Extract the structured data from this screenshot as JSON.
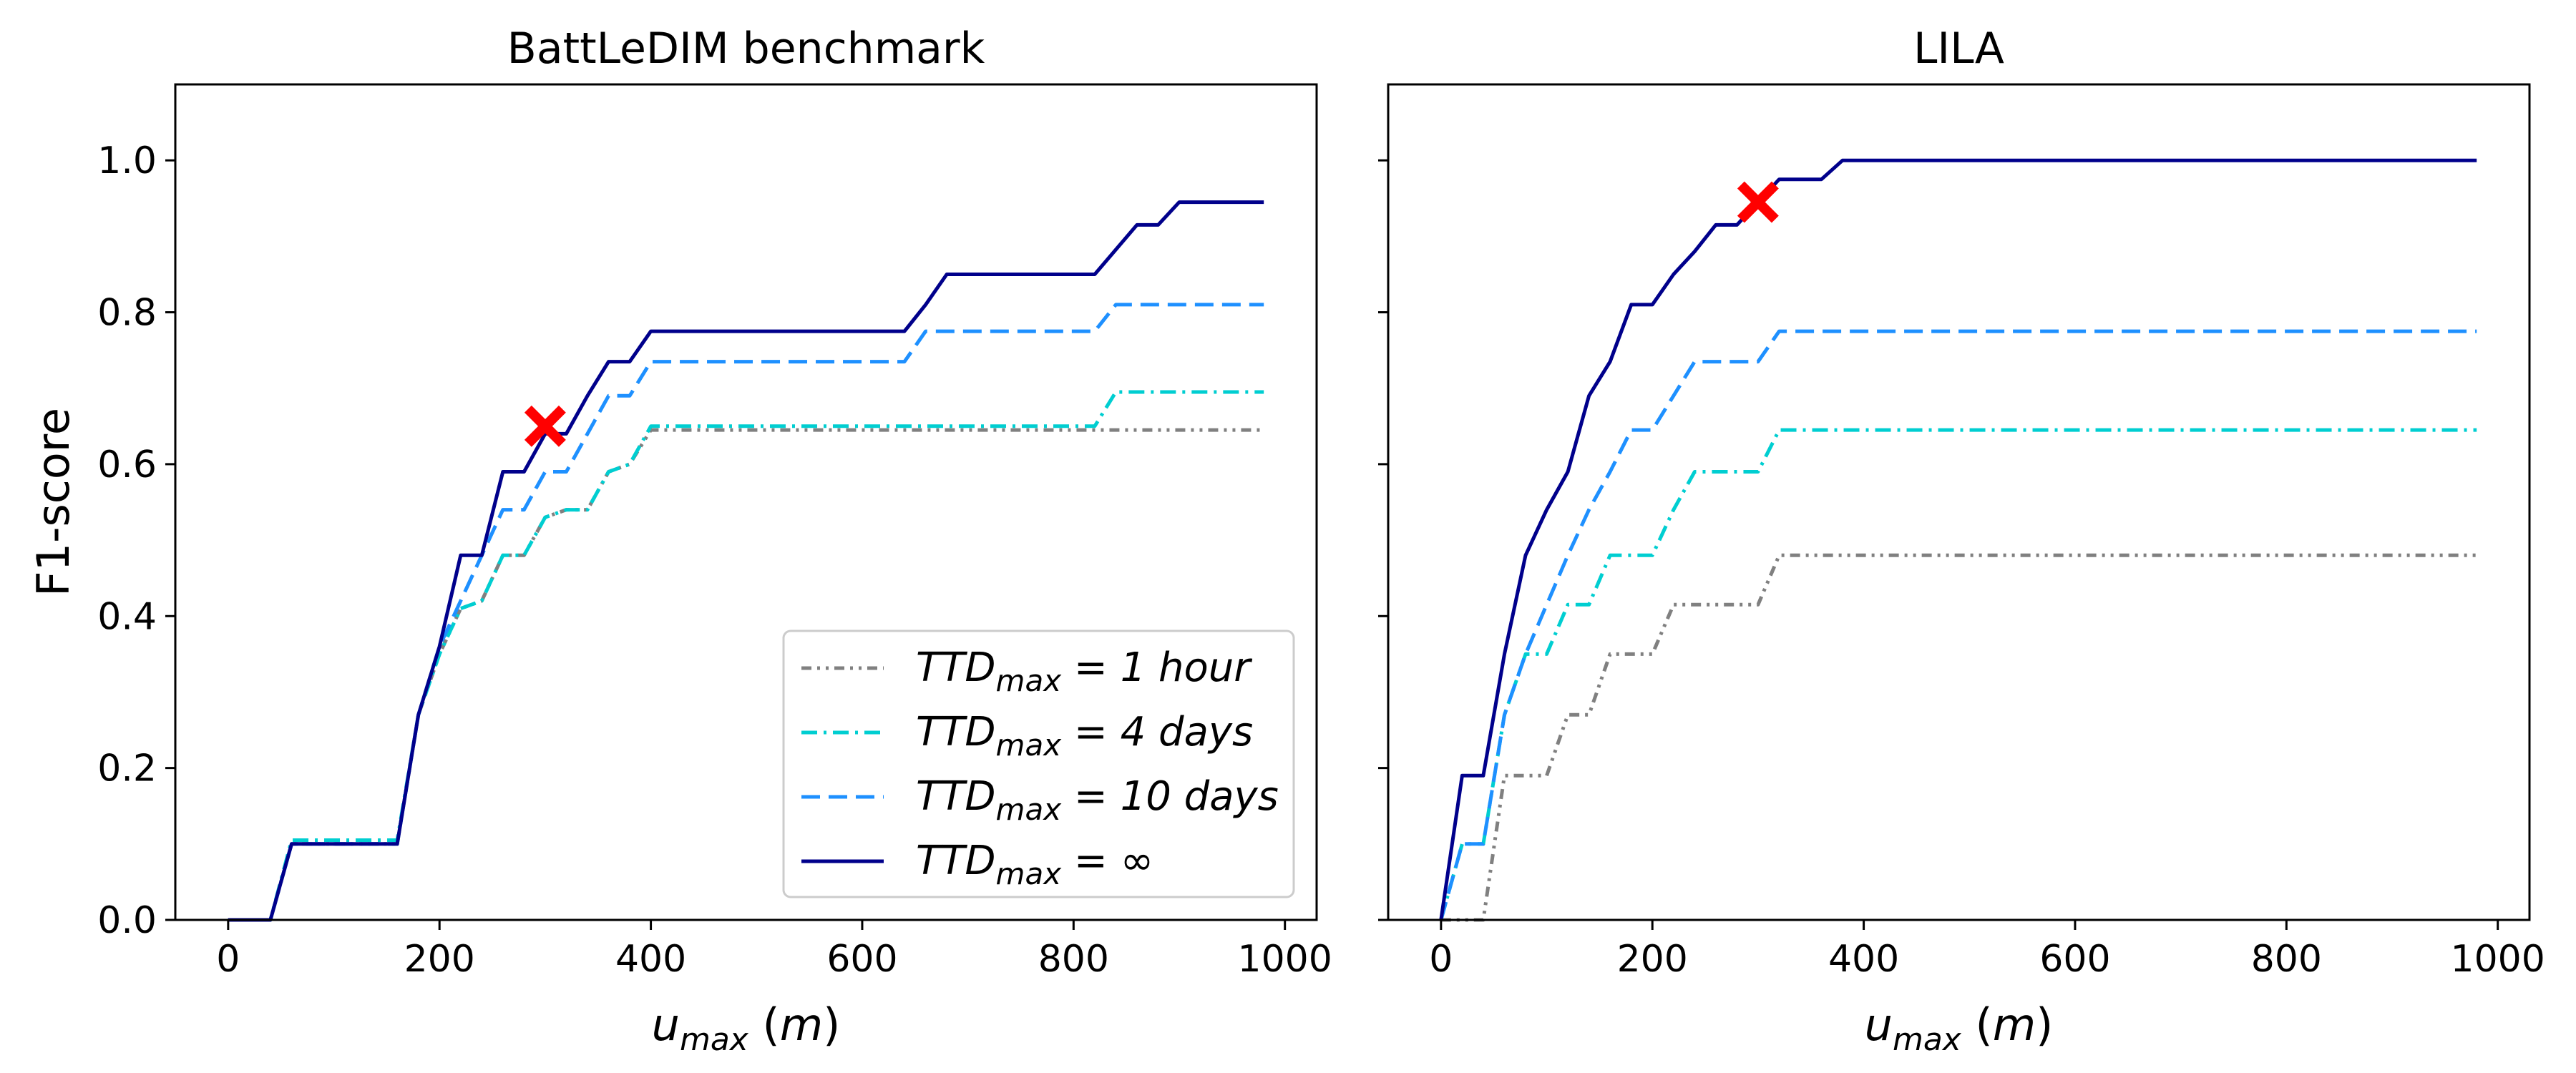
{
  "colors": {
    "1 hour": "#808080",
    "4 days": "#00CED1",
    "10 days": "#1E90FF",
    "inf": "#00008B",
    "marker": "#FF0000"
  },
  "chart_data": [
    {
      "type": "line",
      "title": "BattLeDIM benchmark",
      "xlabel": "u_max (m)",
      "ylabel": "F1-score",
      "xlim": [
        -50,
        1030
      ],
      "ylim": [
        0,
        1.1
      ],
      "xticks": [
        0,
        200,
        400,
        600,
        800,
        1000
      ],
      "yticks": [
        0.0,
        0.2,
        0.4,
        0.6,
        0.8,
        1.0
      ],
      "yticks_labeled": true,
      "legend": "lower-right",
      "series": [
        {
          "name": "TTD_max = 1 hour",
          "color_key": "1 hour",
          "style": "dashdotdot",
          "x": [
            0,
            40,
            60,
            160,
            180,
            200,
            220,
            240,
            260,
            280,
            300,
            320,
            340,
            360,
            380,
            400,
            980
          ],
          "y": [
            0,
            0,
            0.1,
            0.1,
            0.27,
            0.35,
            0.41,
            0.42,
            0.48,
            0.48,
            0.53,
            0.54,
            0.54,
            0.59,
            0.6,
            0.645,
            0.645
          ]
        },
        {
          "name": "TTD_max = 4 days",
          "color_key": "4 days",
          "style": "dashdot",
          "x": [
            0,
            40,
            60,
            160,
            180,
            200,
            220,
            240,
            260,
            280,
            300,
            320,
            340,
            360,
            380,
            400,
            820,
            840,
            980
          ],
          "y": [
            0,
            0,
            0.105,
            0.105,
            0.27,
            0.35,
            0.41,
            0.42,
            0.48,
            0.48,
            0.53,
            0.54,
            0.54,
            0.59,
            0.6,
            0.65,
            0.65,
            0.695,
            0.695
          ]
        },
        {
          "name": "TTD_max = 10 days",
          "color_key": "10 days",
          "style": "dashed",
          "x": [
            0,
            40,
            60,
            160,
            180,
            200,
            220,
            240,
            260,
            280,
            300,
            320,
            340,
            360,
            380,
            400,
            640,
            660,
            820,
            840,
            980
          ],
          "y": [
            0,
            0,
            0.1,
            0.1,
            0.27,
            0.36,
            0.42,
            0.48,
            0.54,
            0.54,
            0.59,
            0.59,
            0.64,
            0.69,
            0.69,
            0.735,
            0.735,
            0.775,
            0.775,
            0.81,
            0.81
          ]
        },
        {
          "name": "TTD_max = ∞",
          "color_key": "inf",
          "style": "solid",
          "x": [
            0,
            40,
            60,
            160,
            180,
            200,
            220,
            240,
            260,
            280,
            300,
            320,
            340,
            360,
            380,
            400,
            640,
            660,
            680,
            820,
            860,
            880,
            900,
            980
          ],
          "y": [
            0,
            0,
            0.1,
            0.1,
            0.27,
            0.36,
            0.48,
            0.48,
            0.59,
            0.59,
            0.64,
            0.64,
            0.69,
            0.735,
            0.735,
            0.775,
            0.775,
            0.81,
            0.85,
            0.85,
            0.915,
            0.915,
            0.945,
            0.945
          ]
        }
      ],
      "marker": {
        "x": 300,
        "y": 0.65
      }
    },
    {
      "type": "line",
      "title": "LILA",
      "xlabel": "u_max (m)",
      "ylabel": "",
      "xlim": [
        -50,
        1030
      ],
      "ylim": [
        0,
        1.1
      ],
      "xticks": [
        0,
        200,
        400,
        600,
        800,
        1000
      ],
      "yticks": [
        0.0,
        0.2,
        0.4,
        0.6,
        0.8,
        1.0
      ],
      "yticks_labeled": false,
      "series": [
        {
          "name": "TTD_max = 1 hour",
          "color_key": "1 hour",
          "style": "dashdotdot",
          "x": [
            0,
            40,
            60,
            100,
            120,
            140,
            160,
            200,
            220,
            300,
            320,
            980
          ],
          "y": [
            0,
            0,
            0.19,
            0.19,
            0.27,
            0.27,
            0.35,
            0.35,
            0.415,
            0.415,
            0.48,
            0.48
          ]
        },
        {
          "name": "TTD_max = 4 days",
          "color_key": "4 days",
          "style": "dashdot",
          "x": [
            0,
            20,
            40,
            60,
            80,
            100,
            120,
            140,
            160,
            200,
            220,
            240,
            300,
            320,
            980
          ],
          "y": [
            0,
            0.1,
            0.1,
            0.27,
            0.35,
            0.35,
            0.415,
            0.415,
            0.48,
            0.48,
            0.54,
            0.59,
            0.59,
            0.645,
            0.645
          ]
        },
        {
          "name": "TTD_max = 10 days",
          "color_key": "10 days",
          "style": "dashed",
          "x": [
            0,
            20,
            40,
            60,
            80,
            100,
            120,
            140,
            160,
            180,
            200,
            220,
            240,
            300,
            320,
            980
          ],
          "y": [
            0,
            0.1,
            0.1,
            0.27,
            0.35,
            0.415,
            0.48,
            0.54,
            0.59,
            0.645,
            0.645,
            0.69,
            0.735,
            0.735,
            0.775,
            0.775
          ]
        },
        {
          "name": "TTD_max = ∞",
          "color_key": "inf",
          "style": "solid",
          "x": [
            0,
            20,
            40,
            60,
            80,
            100,
            120,
            140,
            160,
            180,
            200,
            220,
            240,
            260,
            280,
            300,
            320,
            360,
            380,
            980
          ],
          "y": [
            0,
            0.19,
            0.19,
            0.35,
            0.48,
            0.54,
            0.59,
            0.69,
            0.735,
            0.81,
            0.81,
            0.85,
            0.88,
            0.915,
            0.915,
            0.945,
            0.975,
            0.975,
            1.0,
            1.0
          ]
        }
      ],
      "marker": {
        "x": 300,
        "y": 0.945
      }
    }
  ],
  "legend": {
    "entries": [
      {
        "prefix": "TTD",
        "sub": "max",
        "value": " = 1 hour",
        "color_key": "1 hour",
        "style": "dashdotdot"
      },
      {
        "prefix": "TTD",
        "sub": "max",
        "value": " = 4 days",
        "color_key": "4 days",
        "style": "dashdot"
      },
      {
        "prefix": "TTD",
        "sub": "max",
        "value": " = 10 days",
        "color_key": "10 days",
        "style": "dashed"
      },
      {
        "prefix": "TTD",
        "sub": "max",
        "value": " = ∞",
        "color_key": "inf",
        "style": "solid"
      }
    ]
  },
  "axis_text": {
    "x_main": "u",
    "x_sub": "max",
    "x_unit": " (m)",
    "y": "F1-score"
  }
}
